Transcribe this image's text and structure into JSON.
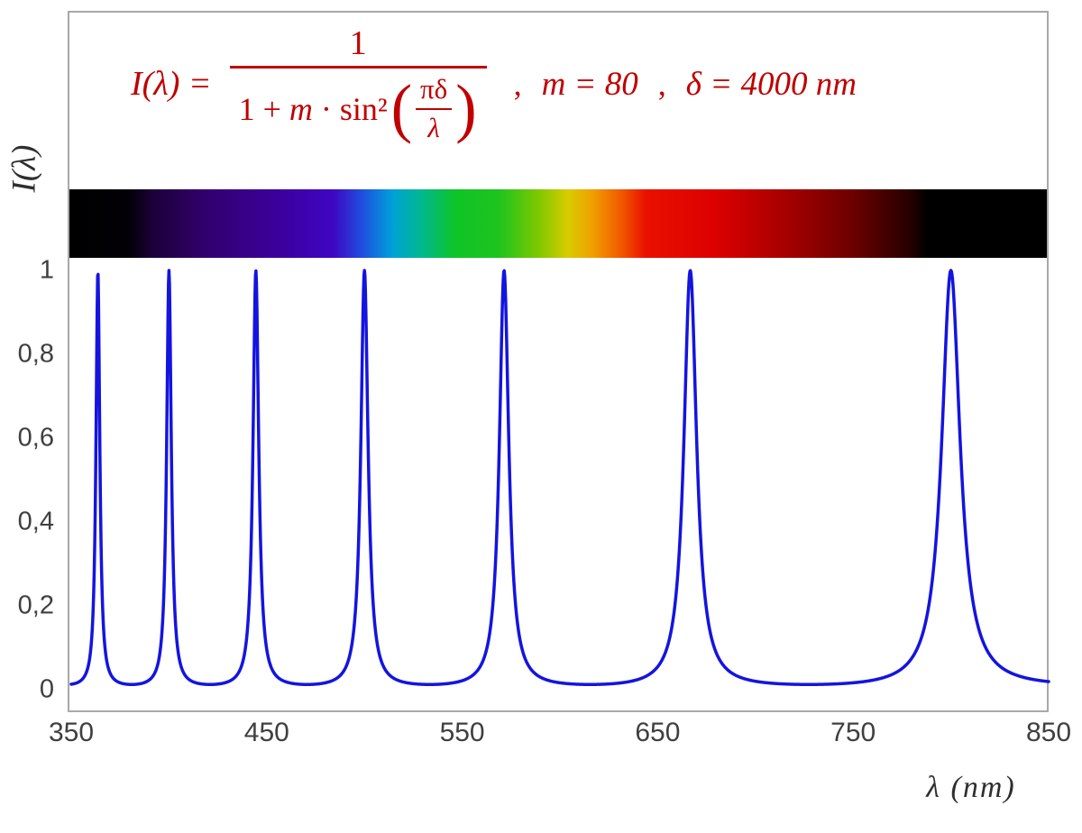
{
  "formula": {
    "lhs": "I(λ) =",
    "numerator": "1",
    "den_p1": "1 +",
    "den_m": "m",
    "den_p2": "· sin²",
    "inner_num": "πδ",
    "inner_den": "λ",
    "comma1": ",",
    "param_m": "m = 80",
    "comma2": ",",
    "param_delta": "δ = 4000 nm"
  },
  "axes": {
    "y_label": "I(λ)",
    "x_label": "λ  (nm)",
    "y_ticks": [
      {
        "value": 1,
        "label": "1"
      },
      {
        "value": 0.8,
        "label": "0,8"
      },
      {
        "value": 0.6,
        "label": "0,6"
      },
      {
        "value": 0.4,
        "label": "0,4"
      },
      {
        "value": 0.2,
        "label": "0,2"
      },
      {
        "value": 0,
        "label": "0"
      }
    ],
    "x_ticks": [
      {
        "value": 350,
        "label": "350"
      },
      {
        "value": 450,
        "label": "450"
      },
      {
        "value": 550,
        "label": "550"
      },
      {
        "value": 650,
        "label": "650"
      },
      {
        "value": 750,
        "label": "750"
      },
      {
        "value": 850,
        "label": "850"
      }
    ]
  },
  "chart_data": {
    "type": "line",
    "title": "I(λ) = 1 / (1 + m·sin²(πδ/λ)),  m = 80,  δ = 4000 nm",
    "xlabel": "λ (nm)",
    "ylabel": "I(λ)",
    "xlim": [
      350,
      850
    ],
    "ylim": [
      0,
      1
    ],
    "x_tick_values": [
      350,
      450,
      550,
      650,
      750,
      850
    ],
    "y_tick_values": [
      0,
      0.2,
      0.4,
      0.6,
      0.8,
      1
    ],
    "grid": false,
    "legend": "none",
    "series": [
      {
        "name": "I(λ)",
        "formula": "I(λ) = 1 / (1 + m · sin²(π·δ/λ))",
        "params": {
          "m": 80,
          "delta_nm": 4000
        },
        "color": "#1414e0",
        "line_width": 3.5,
        "sample_step_nm": 0.25,
        "peak_wavelengths_nm": [
          363.64,
          400.0,
          444.44,
          500.0,
          571.43,
          666.67,
          800.0
        ],
        "peak_value": 1,
        "baseline_value": 0.0123
      }
    ],
    "spectrum_bar": {
      "description": "visible-spectrum color strip spanning the plot width above the curve",
      "stops": [
        {
          "pos": 0.0,
          "color": "#000000"
        },
        {
          "pos": 0.06,
          "color": "#020006"
        },
        {
          "pos": 0.085,
          "color": "#1c0038"
        },
        {
          "pos": 0.14,
          "color": "#32006e"
        },
        {
          "pos": 0.22,
          "color": "#3c00a0"
        },
        {
          "pos": 0.27,
          "color": "#3f06c3"
        },
        {
          "pos": 0.3,
          "color": "#1e50e0"
        },
        {
          "pos": 0.33,
          "color": "#00a0d8"
        },
        {
          "pos": 0.36,
          "color": "#00b890"
        },
        {
          "pos": 0.395,
          "color": "#0ec427"
        },
        {
          "pos": 0.44,
          "color": "#1fc41e"
        },
        {
          "pos": 0.48,
          "color": "#7ec800"
        },
        {
          "pos": 0.51,
          "color": "#d8cc00"
        },
        {
          "pos": 0.535,
          "color": "#f0a000"
        },
        {
          "pos": 0.565,
          "color": "#f05800"
        },
        {
          "pos": 0.59,
          "color": "#ea1000"
        },
        {
          "pos": 0.66,
          "color": "#dc0000"
        },
        {
          "pos": 0.72,
          "color": "#b00000"
        },
        {
          "pos": 0.8,
          "color": "#6e0000"
        },
        {
          "pos": 0.86,
          "color": "#260000"
        },
        {
          "pos": 0.878,
          "color": "#000000"
        },
        {
          "pos": 1.0,
          "color": "#000000"
        }
      ]
    }
  },
  "style": {
    "curve_color": "#1414e0",
    "axis_text_color": "#3f3f3f",
    "frame_color": "#a8a8a8",
    "formula_color": "#c00000",
    "background": "#ffffff"
  }
}
